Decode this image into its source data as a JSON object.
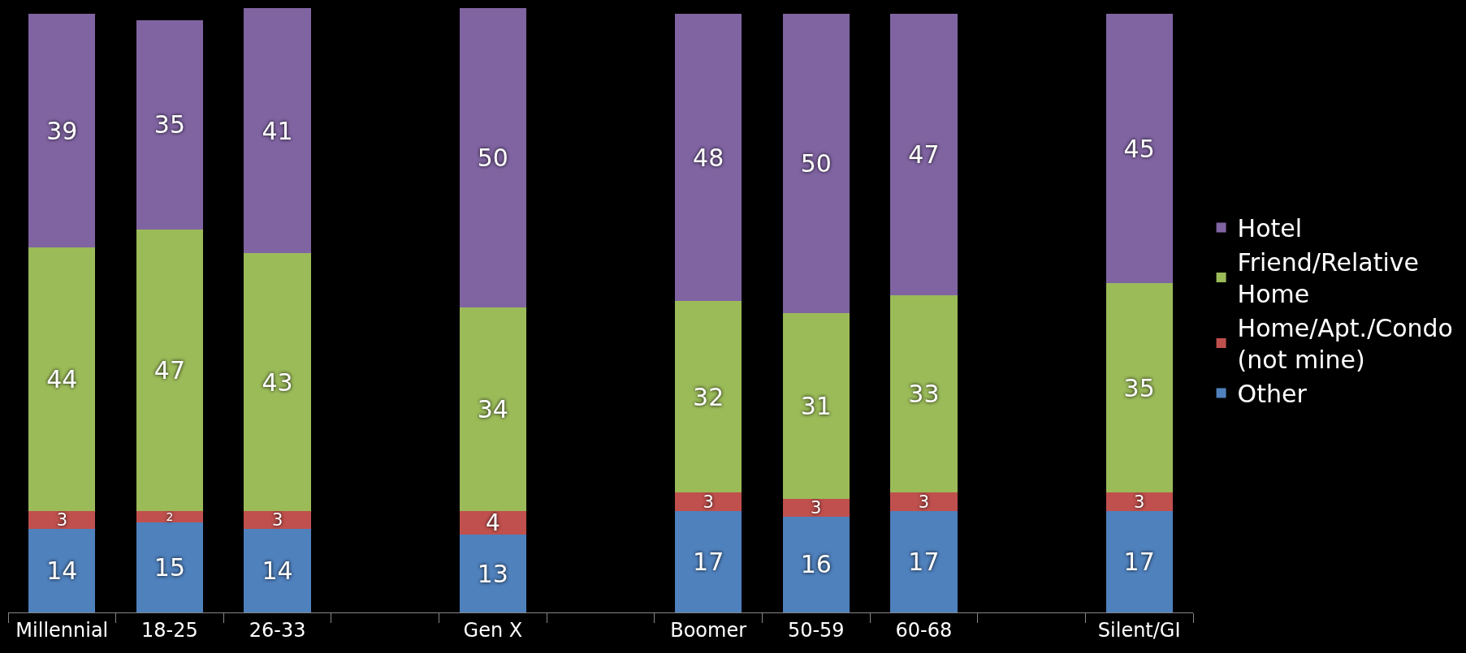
{
  "chart_data": {
    "type": "bar",
    "stacked": true,
    "data_labels": true,
    "legend": "right",
    "grid": false,
    "ylim": [
      0,
      101
    ],
    "categories": [
      "Millennial",
      "18-25",
      "26-33",
      null,
      "Gen X",
      null,
      "Boomer",
      "50-59",
      "60-68",
      null,
      "Silent/GI"
    ],
    "series": [
      {
        "name": "Other",
        "color": "#4f81bd",
        "values": [
          14,
          15,
          14,
          null,
          13,
          null,
          17,
          16,
          17,
          null,
          17
        ]
      },
      {
        "name": "Home/Apt./Condo (not mine)",
        "color": "#c0504d",
        "values": [
          3,
          2,
          3,
          null,
          4,
          null,
          3,
          3,
          3,
          null,
          3
        ]
      },
      {
        "name": "Friend/Relative Home",
        "color": "#9bbb59",
        "values": [
          44,
          47,
          43,
          null,
          34,
          null,
          32,
          31,
          33,
          null,
          35
        ]
      },
      {
        "name": "Hotel",
        "color": "#8064a2",
        "values": [
          39,
          35,
          41,
          null,
          50,
          null,
          48,
          50,
          47,
          null,
          45
        ]
      }
    ]
  }
}
